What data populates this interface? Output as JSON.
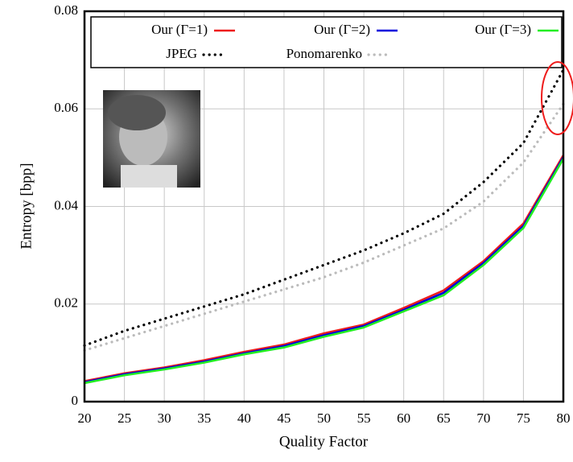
{
  "chart_data": {
    "type": "line",
    "x_label": "Quality Factor",
    "y_label": "Entropy [bpp]",
    "x": [
      20,
      25,
      30,
      35,
      40,
      45,
      50,
      55,
      60,
      65,
      70,
      75,
      80
    ],
    "xlim": [
      20,
      80
    ],
    "xticks": [
      20,
      25,
      30,
      35,
      40,
      45,
      50,
      55,
      60,
      65,
      70,
      75,
      80
    ],
    "ylim": [
      0,
      0.08
    ],
    "yticks": [
      0,
      0.02,
      0.04,
      0.06,
      0.08
    ],
    "grid": true,
    "legend": "top",
    "series": [
      {
        "name": "Our (Γ=1)",
        "color": "#ee1c1c",
        "style": "solid",
        "values": [
          0.0042,
          0.0058,
          0.007,
          0.0085,
          0.0102,
          0.0117,
          0.014,
          0.0158,
          0.0192,
          0.0228,
          0.0288,
          0.0365,
          0.0505
        ]
      },
      {
        "name": "Our (Γ=2)",
        "color": "#0000dd",
        "style": "solid",
        "values": [
          0.004,
          0.0056,
          0.0068,
          0.0082,
          0.0099,
          0.0114,
          0.0136,
          0.0155,
          0.0188,
          0.0223,
          0.0284,
          0.036,
          0.0501
        ]
      },
      {
        "name": "Our (Γ=3)",
        "color": "#22ee22",
        "style": "solid",
        "values": [
          0.0038,
          0.0054,
          0.0066,
          0.008,
          0.0097,
          0.0111,
          0.0133,
          0.0152,
          0.0185,
          0.0218,
          0.028,
          0.0356,
          0.0498
        ]
      },
      {
        "name": "JPEG",
        "color": "#000000",
        "style": "dotted",
        "values": [
          0.0115,
          0.0145,
          0.017,
          0.0195,
          0.022,
          0.025,
          0.028,
          0.031,
          0.0345,
          0.0385,
          0.045,
          0.053,
          0.068
        ]
      },
      {
        "name": "Ponomarenko",
        "color": "#bbbbbb",
        "style": "dotted",
        "values": [
          0.0105,
          0.013,
          0.0155,
          0.018,
          0.0205,
          0.023,
          0.0255,
          0.0285,
          0.032,
          0.0355,
          0.041,
          0.049,
          0.061
        ]
      }
    ]
  }
}
